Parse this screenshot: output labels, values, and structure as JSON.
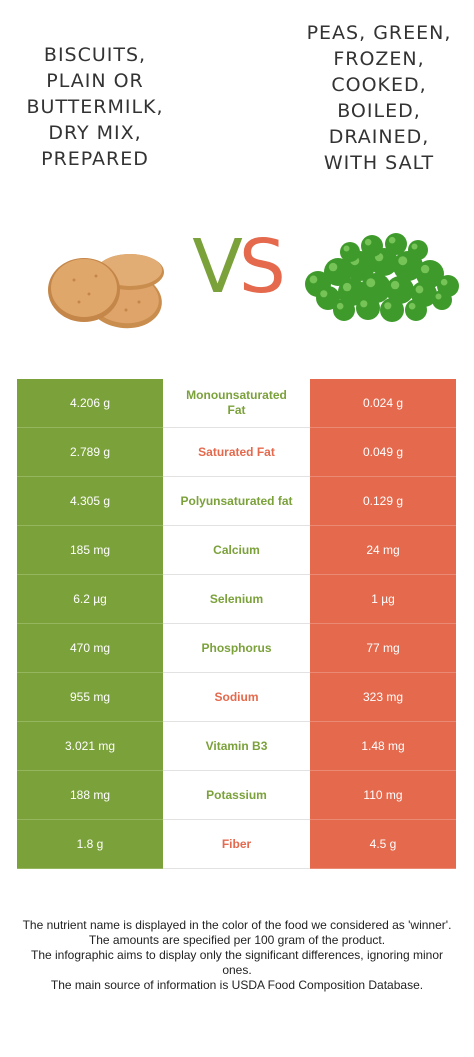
{
  "left_food": {
    "title": "Biscuits,\nplain or\nbuttermilk,\ndry mix,\nprepared"
  },
  "right_food": {
    "title": "Peas, green,\nfrozen,\ncooked,\nboiled,\ndrained,\nwith salt"
  },
  "vs": {
    "v": "V",
    "s": "S"
  },
  "colors": {
    "left": "#7ba13b",
    "right": "#e4694d"
  },
  "rows": [
    {
      "nutrient": "Monounsaturated Fat",
      "left": "4.206 g",
      "right": "0.024 g",
      "winner": "left"
    },
    {
      "nutrient": "Saturated Fat",
      "left": "2.789 g",
      "right": "0.049 g",
      "winner": "right"
    },
    {
      "nutrient": "Polyunsaturated fat",
      "left": "4.305 g",
      "right": "0.129 g",
      "winner": "left"
    },
    {
      "nutrient": "Calcium",
      "left": "185 mg",
      "right": "24 mg",
      "winner": "left"
    },
    {
      "nutrient": "Selenium",
      "left": "6.2 µg",
      "right": "1 µg",
      "winner": "left"
    },
    {
      "nutrient": "Phosphorus",
      "left": "470 mg",
      "right": "77 mg",
      "winner": "left"
    },
    {
      "nutrient": "Sodium",
      "left": "955 mg",
      "right": "323 mg",
      "winner": "right"
    },
    {
      "nutrient": "Vitamin B3",
      "left": "3.021 mg",
      "right": "1.48 mg",
      "winner": "left"
    },
    {
      "nutrient": "Potassium",
      "left": "188 mg",
      "right": "110 mg",
      "winner": "left"
    },
    {
      "nutrient": "Fiber",
      "left": "1.8 g",
      "right": "4.5 g",
      "winner": "right"
    }
  ],
  "footer": {
    "line1": "The nutrient name is displayed in the color of the food we considered as 'winner'.",
    "line2": "The amounts are specified per 100 gram of the product.",
    "line3": "The infographic aims to display only the significant differences, ignoring minor ones.",
    "line4": "The main source of information is USDA Food Composition Database."
  }
}
